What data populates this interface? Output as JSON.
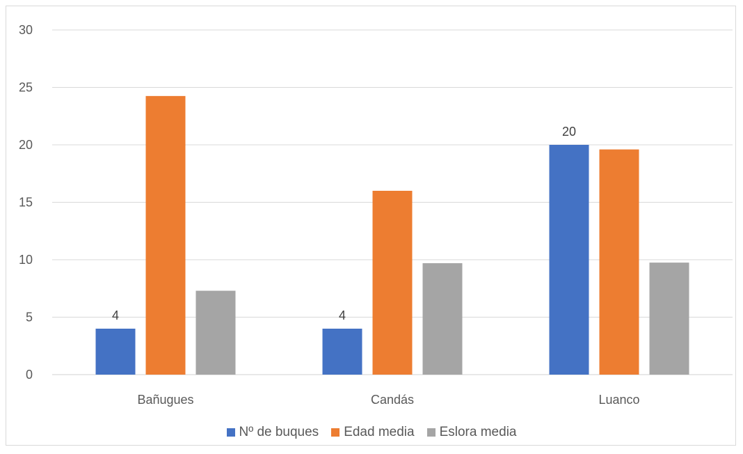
{
  "chart_data": {
    "type": "bar",
    "categories": [
      "Bañugues",
      "Candás",
      "Luanco"
    ],
    "series": [
      {
        "name": "Nº de buques",
        "values": [
          4,
          4,
          20
        ],
        "color": "#4472c4",
        "labels": [
          "4",
          "4",
          "20"
        ]
      },
      {
        "name": "Edad media",
        "values": [
          24.25,
          16,
          19.6
        ],
        "color": "#ed7d31"
      },
      {
        "name": "Eslora media",
        "values": [
          7.3,
          9.7,
          9.75
        ],
        "color": "#a5a5a5"
      }
    ],
    "ylim": [
      0,
      30
    ],
    "yticks": [
      "0",
      "5",
      "10",
      "15",
      "20",
      "25",
      "30"
    ],
    "grid": true,
    "legend_position": "bottom"
  }
}
